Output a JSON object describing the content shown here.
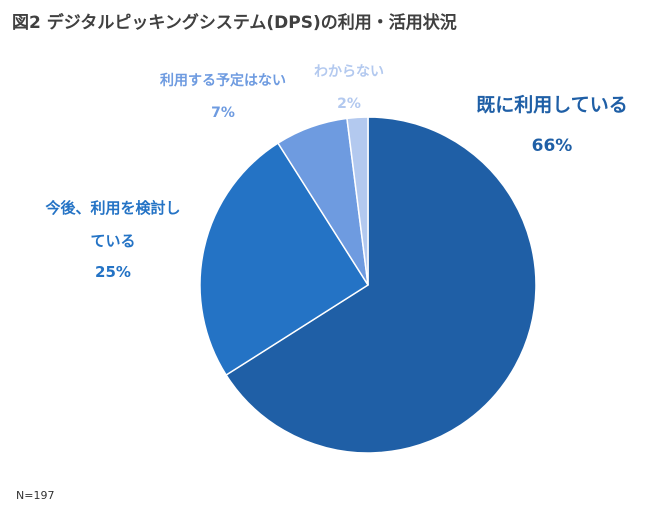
{
  "title": "図2 デジタルピッキングシステム(DPS)の利用・活用状況",
  "note": "N=197",
  "chart_data": {
    "type": "pie",
    "title": "図2 デジタルピッキングシステム(DPS)の利用・活用状況",
    "slices": [
      {
        "label": "既に利用している",
        "value": 66,
        "value_label": "66%",
        "color": "#1f5fa6"
      },
      {
        "label_lines": [
          "今後、利用を検討し",
          "ている"
        ],
        "label": "今後、利用を検討している",
        "value": 25,
        "value_label": "25%",
        "color": "#2473c5"
      },
      {
        "label": "利用する予定はない",
        "value": 7,
        "value_label": "7%",
        "color": "#6e9be0"
      },
      {
        "label": "わからない",
        "value": 2,
        "value_label": "2%",
        "color": "#b3c9ef"
      }
    ],
    "start_angle": "12 o'clock",
    "direction": "clockwise",
    "legend": "none",
    "data_labels": "outside"
  }
}
